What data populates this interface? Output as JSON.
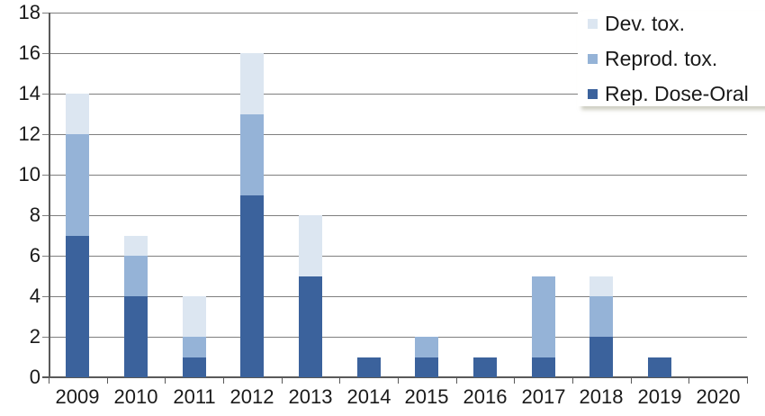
{
  "chart_data": {
    "type": "bar",
    "stacked": true,
    "title": "",
    "xlabel": "",
    "ylabel": "",
    "categories": [
      "2009",
      "2010",
      "2011",
      "2012",
      "2013",
      "2014",
      "2015",
      "2016",
      "2017",
      "2018",
      "2019",
      "2020"
    ],
    "series": [
      {
        "name": "Rep. Dose-Oral",
        "color": "#3B629C",
        "values": [
          7,
          4,
          1,
          9,
          5,
          1,
          1,
          1,
          1,
          2,
          1,
          0
        ]
      },
      {
        "name": "Reprod. tox.",
        "color": "#95B3D7",
        "values": [
          5,
          2,
          1,
          4,
          0,
          0,
          1,
          0,
          4,
          2,
          0,
          0
        ]
      },
      {
        "name": "Dev. tox.",
        "color": "#DCE6F1",
        "values": [
          2,
          1,
          2,
          3,
          3,
          0,
          0,
          0,
          0,
          1,
          0,
          0
        ]
      }
    ],
    "totals": [
      14,
      7,
      4,
      16,
      8,
      1,
      2,
      1,
      5,
      5,
      1,
      0
    ],
    "ylim": [
      0,
      18
    ],
    "ytick_step": 2,
    "ytick_labels": [
      "0",
      "2",
      "4",
      "6",
      "8",
      "10",
      "12",
      "14",
      "16",
      "18"
    ],
    "grid": true,
    "legend_position": "top-right",
    "legend_order_top_to_bottom": [
      "Dev. tox.",
      "Reprod. tox.",
      "Rep. Dose-Oral"
    ],
    "colors": {
      "grid": "#7F7F7F",
      "axis": "#595959",
      "text": "#1a1a1a",
      "background": "#ffffff"
    }
  }
}
